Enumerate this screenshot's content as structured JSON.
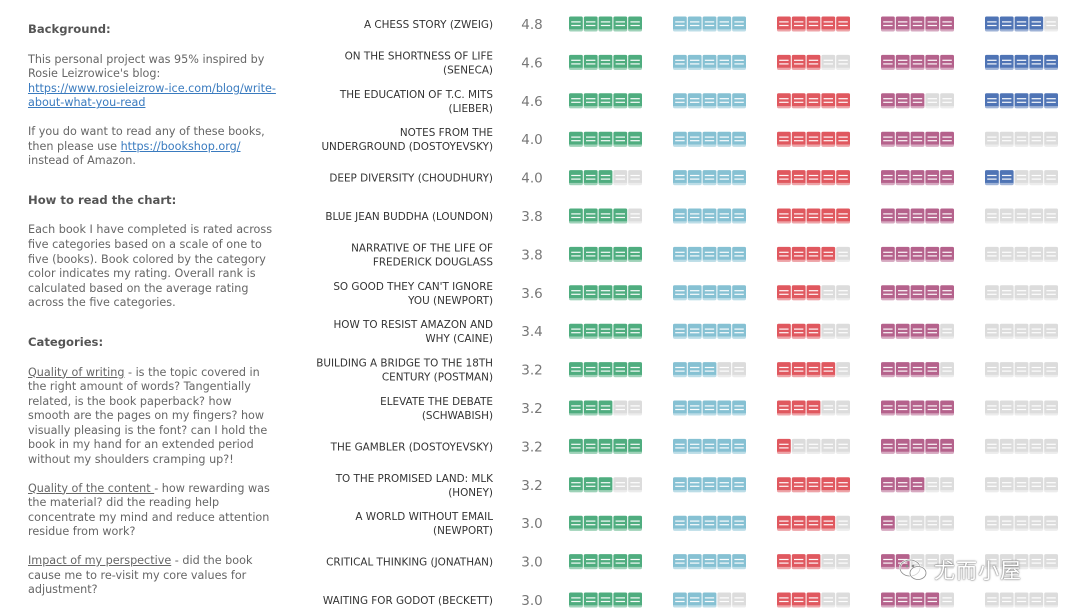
{
  "sidebar": {
    "background_heading": "Background:",
    "bg_p1_a": "This personal project was 95% inspired by Rosie Leizrowice's blog: ",
    "bg_p1_link": "https://www.rosieleizrow-ice.com/blog/write-about-what-you-read",
    "bg_p2_a": "If you do want to read any of these books, then please use ",
    "bg_p2_link": "https://bookshop.org/",
    "bg_p2_b": " instead of Amazon.",
    "howto_heading": "How to read the chart:",
    "howto_text": "Each book I have completed is rated across five categories based on a scale of one to five (books). Book colored by the category color indicates my rating. Overall rank is calculated based on the average rating across the five categories.",
    "categories_heading": "Categories:",
    "cat1_name": "Quality of writing",
    "cat1_desc": " - is the topic covered in the right amount of words? Tangentially related, is the book paperback? how smooth are the pages on my fingers? how visually pleasing is the font? can I hold the book in my hand for an extended period without my shoulders cramping up?!",
    "cat2_name": "Quality of the content ",
    "cat2_desc": "- how rewarding was the material? did the reading help concentrate my mind and reduce attention residue from work?",
    "cat3_name": "Impact of my perspective",
    "cat3_desc": " - did the book cause me to re-visit my core values for adjustment?"
  },
  "watermark": {
    "text": "尤而小屋"
  },
  "chart_data": {
    "type": "table",
    "category_colors": [
      "#4fad7f",
      "#86c1d3",
      "#e0585f",
      "#b5628c",
      "#4f74b5"
    ],
    "empty_color": "#dcdcdc",
    "max_rating": 5,
    "books": [
      {
        "title": "A CHESS STORY (ZWEIG)",
        "avg": "4.8",
        "ratings": [
          5,
          5,
          5,
          5,
          4
        ]
      },
      {
        "title": "ON THE SHORTNESS OF LIFE (SENECA)",
        "avg": "4.6",
        "ratings": [
          5,
          5,
          3,
          5,
          5
        ]
      },
      {
        "title": "THE EDUCATION OF T.C. MITS (LIEBER)",
        "avg": "4.6",
        "ratings": [
          5,
          5,
          5,
          3,
          5
        ]
      },
      {
        "title": "NOTES FROM THE UNDERGROUND (DOSTOYEVSKY)",
        "avg": "4.0",
        "ratings": [
          5,
          5,
          5,
          5,
          0
        ]
      },
      {
        "title": "DEEP DIVERSITY (CHOUDHURY)",
        "avg": "4.0",
        "ratings": [
          3,
          5,
          5,
          5,
          2
        ]
      },
      {
        "title": "BLUE JEAN BUDDHA (LOUNDON)",
        "avg": "3.8",
        "ratings": [
          4,
          5,
          5,
          5,
          0
        ]
      },
      {
        "title": "NARRATIVE OF THE LIFE OF FREDERICK DOUGLASS",
        "avg": "3.8",
        "ratings": [
          5,
          5,
          4,
          5,
          0
        ]
      },
      {
        "title": "SO GOOD THEY CAN'T IGNORE YOU (NEWPORT)",
        "avg": "3.6",
        "ratings": [
          5,
          5,
          3,
          5,
          0
        ]
      },
      {
        "title": "HOW TO RESIST AMAZON AND WHY (CAINE)",
        "avg": "3.4",
        "ratings": [
          5,
          5,
          3,
          4,
          0
        ]
      },
      {
        "title": "BUILDING A BRIDGE TO THE 18TH CENTURY (POSTMAN)",
        "avg": "3.2",
        "ratings": [
          5,
          3,
          4,
          4,
          0
        ]
      },
      {
        "title": "ELEVATE THE DEBATE (SCHWABISH)",
        "avg": "3.2",
        "ratings": [
          3,
          5,
          3,
          5,
          0
        ]
      },
      {
        "title": "THE GAMBLER (DOSTOYEVSKY)",
        "avg": "3.2",
        "ratings": [
          5,
          5,
          1,
          5,
          0
        ]
      },
      {
        "title": "TO THE PROMISED LAND: MLK (HONEY)",
        "avg": "3.2",
        "ratings": [
          3,
          5,
          5,
          3,
          0
        ]
      },
      {
        "title": "A WORLD WITHOUT EMAIL (NEWPORT)",
        "avg": "3.0",
        "ratings": [
          5,
          5,
          4,
          1,
          0
        ]
      },
      {
        "title": "CRITICAL THINKING (JONATHAN)",
        "avg": "3.0",
        "ratings": [
          5,
          5,
          3,
          2,
          0
        ]
      },
      {
        "title": "WAITING FOR GODOT (BECKETT)",
        "avg": "3.0",
        "ratings": [
          5,
          3,
          3,
          4,
          0
        ]
      }
    ]
  }
}
